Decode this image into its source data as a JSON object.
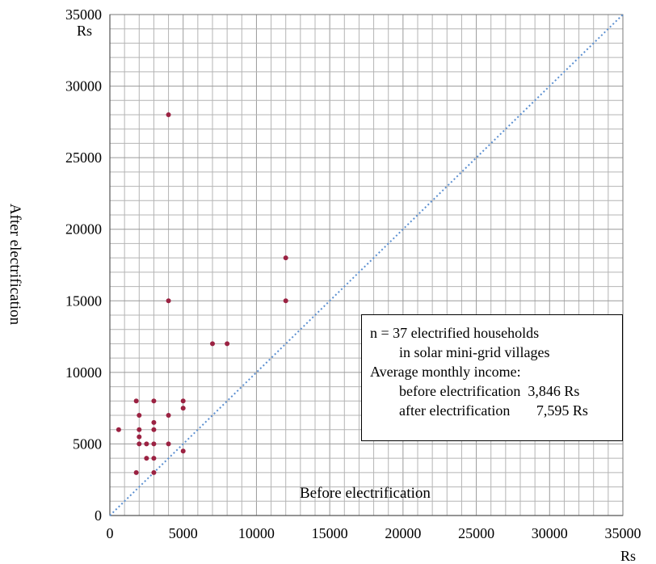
{
  "chart_data": {
    "type": "scatter",
    "title": "",
    "xlabel": "Before electrification",
    "ylabel": "After electrification",
    "x_unit": "Rs",
    "y_unit": "Rs",
    "xlim": [
      0,
      35000
    ],
    "ylim": [
      0,
      35000
    ],
    "x_ticks": [
      "0",
      "5000",
      "10000",
      "15000",
      "20000",
      "25000",
      "30000",
      "35000"
    ],
    "y_ticks": [
      "0",
      "5000",
      "10000",
      "15000",
      "20000",
      "25000",
      "30000",
      "35000"
    ],
    "grid": true,
    "reference_line": "y = x (dotted)",
    "marker_color": "#9b2242",
    "reference_line_color": "#5b8fd0",
    "points": [
      {
        "x": 600,
        "y": 6000
      },
      {
        "x": 1800,
        "y": 3000
      },
      {
        "x": 1800,
        "y": 8000
      },
      {
        "x": 2000,
        "y": 7000
      },
      {
        "x": 2000,
        "y": 6000
      },
      {
        "x": 2000,
        "y": 5500
      },
      {
        "x": 2000,
        "y": 5000
      },
      {
        "x": 2500,
        "y": 5000
      },
      {
        "x": 2500,
        "y": 4000
      },
      {
        "x": 3000,
        "y": 8000
      },
      {
        "x": 3000,
        "y": 6500
      },
      {
        "x": 3000,
        "y": 6000
      },
      {
        "x": 3000,
        "y": 5000
      },
      {
        "x": 3000,
        "y": 4000
      },
      {
        "x": 3000,
        "y": 3000
      },
      {
        "x": 4000,
        "y": 28000
      },
      {
        "x": 4000,
        "y": 15000
      },
      {
        "x": 4000,
        "y": 7000
      },
      {
        "x": 4000,
        "y": 5000
      },
      {
        "x": 5000,
        "y": 8000
      },
      {
        "x": 5000,
        "y": 7500
      },
      {
        "x": 5000,
        "y": 4500
      },
      {
        "x": 7000,
        "y": 12000
      },
      {
        "x": 8000,
        "y": 12000
      },
      {
        "x": 12000,
        "y": 18000
      },
      {
        "x": 12000,
        "y": 15000
      }
    ]
  },
  "info_box": {
    "line1": "n = 37 electrified households",
    "line2": "in solar mini-grid  villages",
    "line3": "Average monthly income:",
    "line4_label": "before electrification",
    "line4_value": "3,846 Rs",
    "line5_label": "after electrification",
    "line5_value": "7,595 Rs"
  }
}
